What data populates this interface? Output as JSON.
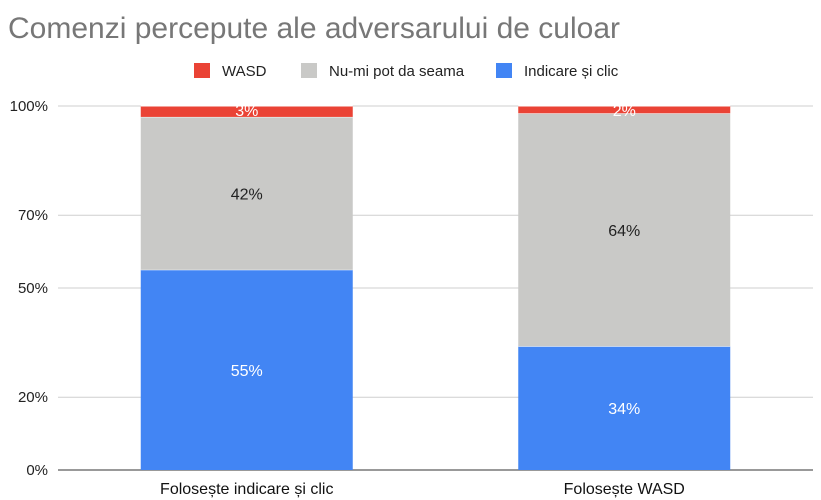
{
  "chart_data": {
    "type": "bar",
    "stacked": true,
    "title": "Comenzi percepute ale adversarului de culoar",
    "xlabel": "",
    "ylabel": "",
    "categories": [
      "Folosește indicare și clic",
      "Folosește WASD"
    ],
    "series": [
      {
        "name": "Indicare și clic",
        "color": "#4285f4",
        "values": [
          55,
          34
        ],
        "labels": [
          "55%",
          "34%"
        ],
        "label_color": "#ffffff"
      },
      {
        "name": "Nu-mi pot da seama",
        "color": "#c9c9c7",
        "values": [
          42,
          64
        ],
        "labels": [
          "42%",
          "64%"
        ],
        "label_color": "#222222"
      },
      {
        "name": "WASD",
        "color": "#ea4335",
        "values": [
          3,
          2
        ],
        "labels": [
          "3%",
          "2%"
        ],
        "label_color": "#ffffff"
      }
    ],
    "legend_order": [
      "WASD",
      "Nu-mi pot da seama",
      "Indicare și clic"
    ],
    "ylim": [
      0,
      100
    ],
    "yticks": [
      0,
      20,
      50,
      70,
      100
    ],
    "ytick_labels": [
      "0%",
      "20%",
      "50%",
      "70%",
      "100%"
    ],
    "grid": true,
    "legend_position": "top"
  }
}
